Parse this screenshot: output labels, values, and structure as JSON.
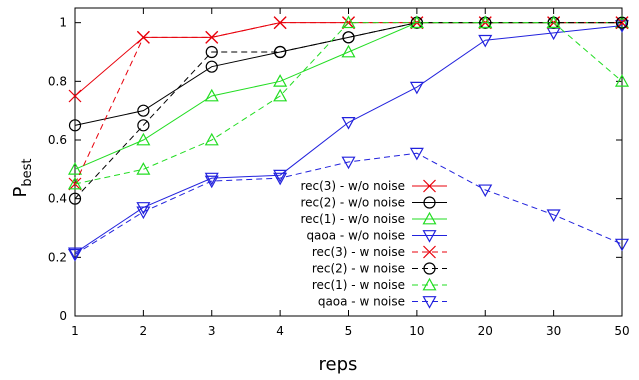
{
  "chart_data": {
    "type": "line",
    "xlabel": "reps",
    "ylabel": "P",
    "ylabel_sub": "best",
    "x_ticks": [
      1,
      2,
      3,
      4,
      5,
      10,
      20,
      30,
      50
    ],
    "y_ticks": [
      "0",
      "0.2",
      "0.4",
      "0.6",
      "0.8",
      "1"
    ],
    "ylim": [
      0,
      1.05
    ],
    "legend_position": "center-right",
    "series": [
      {
        "name": "rec(3) - w/o noise",
        "color": "#e8000b",
        "dash": "solid",
        "marker": "x",
        "values": [
          0.75,
          0.95,
          0.95,
          1.0,
          1.0,
          1.0,
          1.0,
          1.0,
          1.0
        ]
      },
      {
        "name": "rec(2) - w/o noise",
        "color": "#000000",
        "dash": "solid",
        "marker": "circle",
        "values": [
          0.65,
          0.7,
          0.85,
          0.9,
          0.95,
          1.0,
          1.0,
          1.0,
          1.0
        ]
      },
      {
        "name": "rec(1) - w/o noise",
        "color": "#22dd22",
        "dash": "solid",
        "marker": "triangle-up",
        "values": [
          0.5,
          0.6,
          0.75,
          0.8,
          0.9,
          1.0,
          1.0,
          1.0,
          1.0
        ]
      },
      {
        "name": "qaoa - w/o noise",
        "color": "#2222dd",
        "dash": "solid",
        "marker": "triangle-down",
        "values": [
          0.215,
          0.37,
          0.47,
          0.48,
          0.66,
          0.78,
          0.94,
          0.965,
          0.99
        ]
      },
      {
        "name": "rec(3) - w noise",
        "color": "#e8000b",
        "dash": "dashed",
        "marker": "x",
        "values": [
          0.45,
          0.95,
          0.95,
          1.0,
          1.0,
          1.0,
          1.0,
          1.0,
          1.0
        ]
      },
      {
        "name": "rec(2) - w noise",
        "color": "#000000",
        "dash": "dashed",
        "marker": "circle",
        "values": [
          0.4,
          0.65,
          0.9,
          0.9,
          0.95,
          1.0,
          1.0,
          1.0,
          1.0
        ]
      },
      {
        "name": "rec(1) - w noise",
        "color": "#22dd22",
        "dash": "dashed",
        "marker": "triangle-up",
        "values": [
          0.45,
          0.5,
          0.6,
          0.75,
          1.0,
          1.0,
          1.0,
          1.0,
          0.8
        ]
      },
      {
        "name": "qaoa - w noise",
        "color": "#2222dd",
        "dash": "dashed",
        "marker": "triangle-down",
        "values": [
          0.21,
          0.355,
          0.46,
          0.47,
          0.525,
          0.555,
          0.43,
          0.345,
          0.245
        ]
      }
    ]
  }
}
